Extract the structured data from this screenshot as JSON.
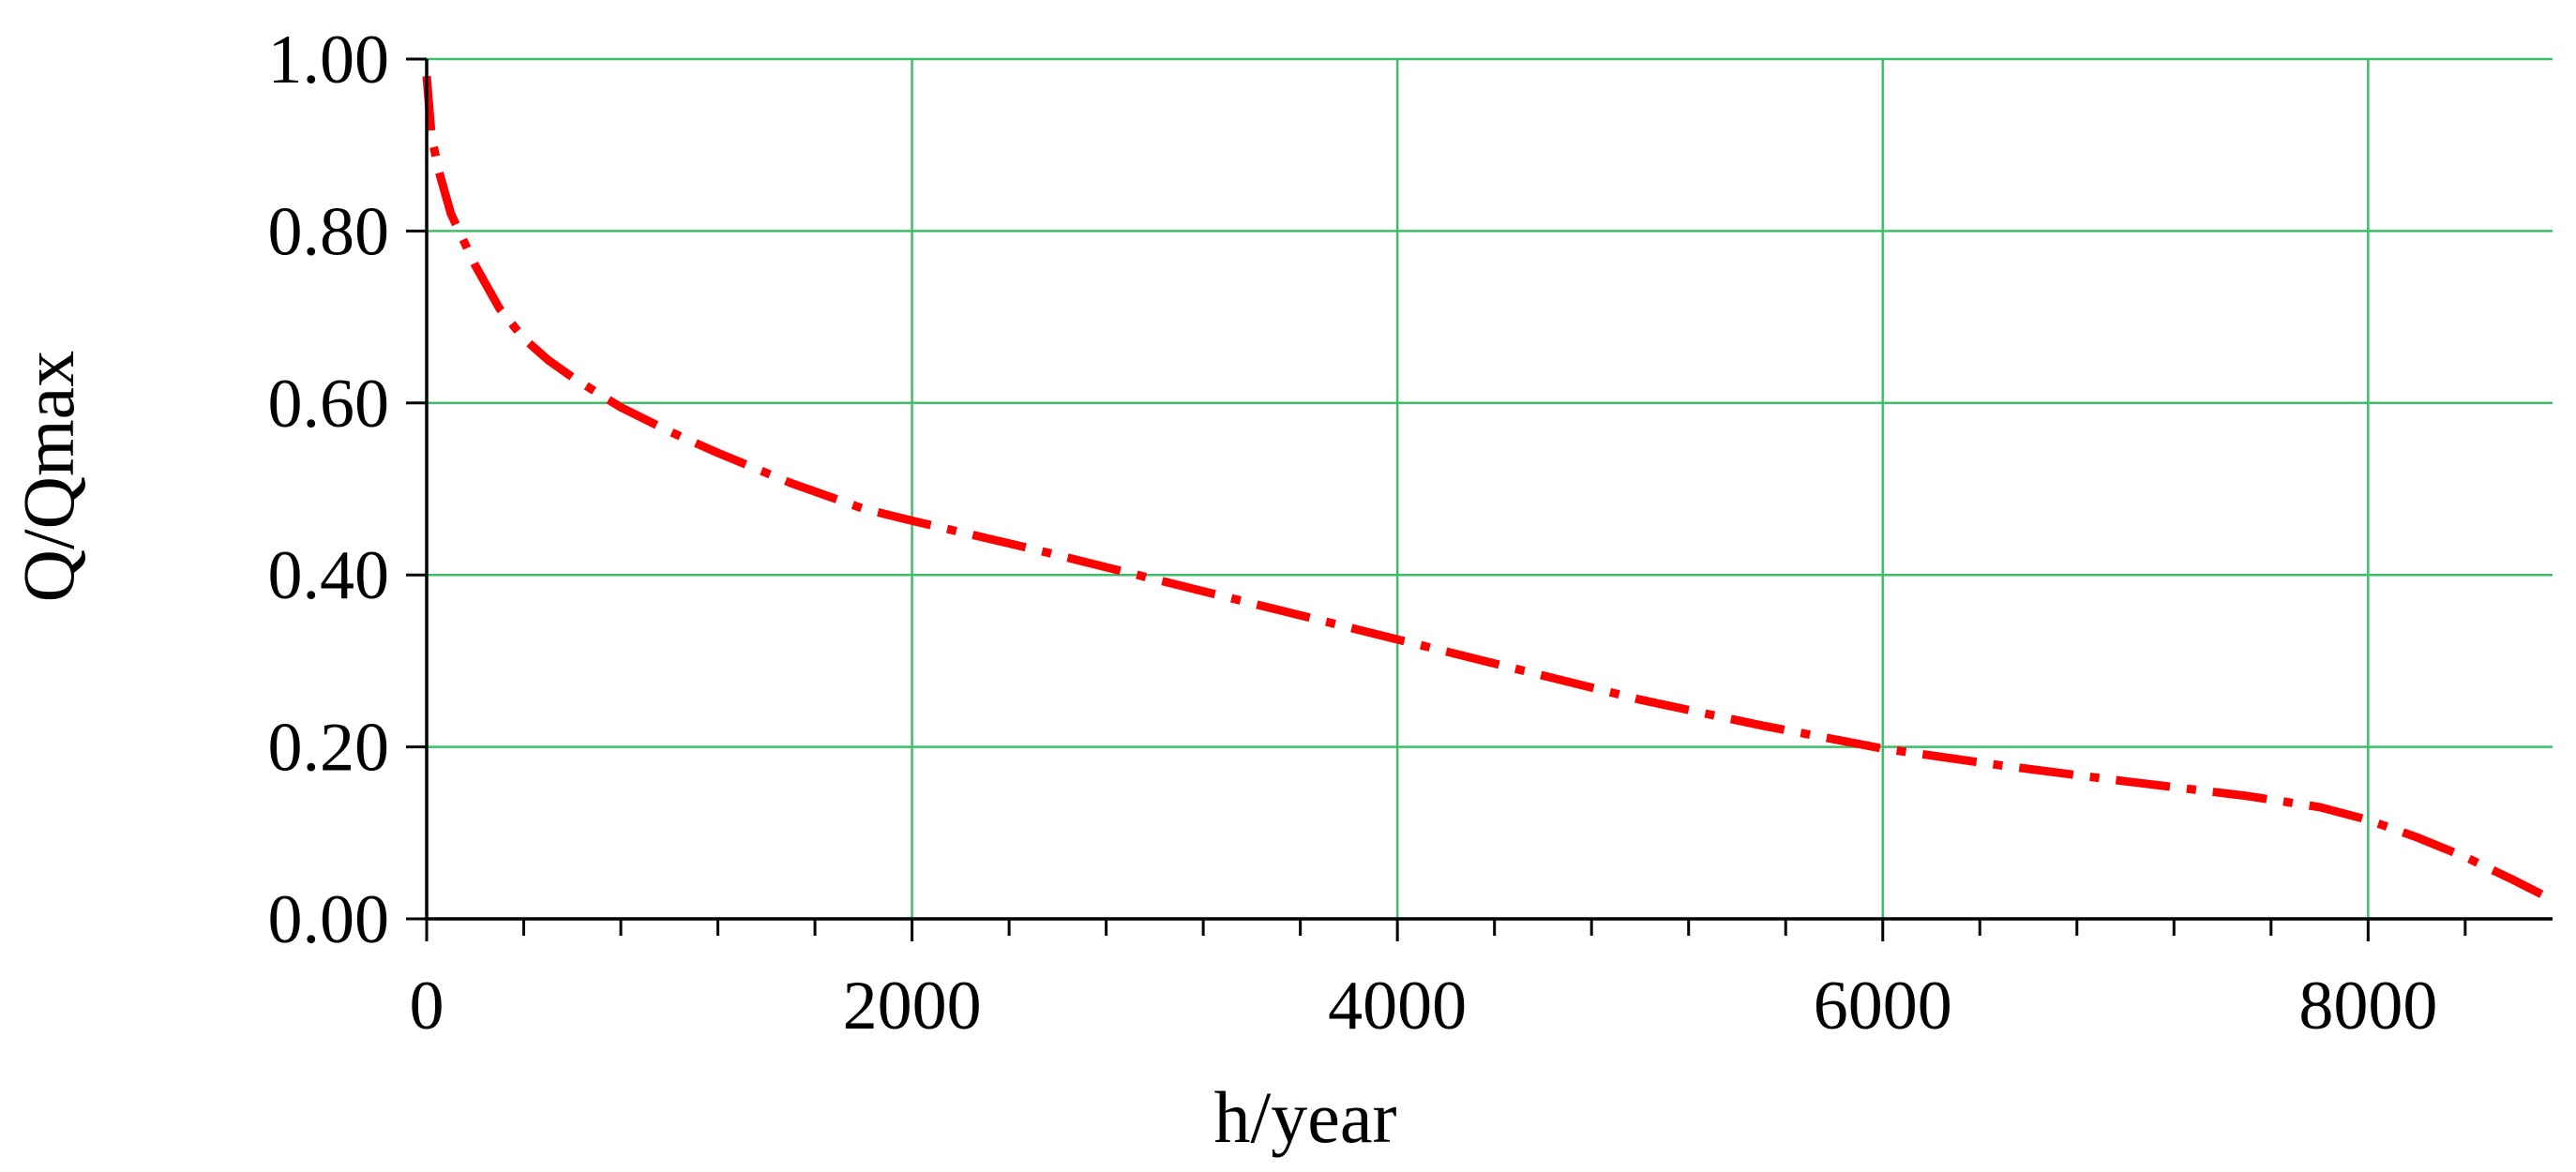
{
  "colors": {
    "grid": "#3cbf6a",
    "series": "#ff0000",
    "axis": "#000000",
    "background": "#ffffff"
  },
  "chart_data": {
    "type": "line",
    "title": "",
    "xlabel": "h/year",
    "ylabel": "Q/Qmax",
    "xlim": [
      0,
      8760
    ],
    "ylim": [
      0,
      1.0
    ],
    "x_ticks": [
      0,
      2000,
      4000,
      6000,
      8000
    ],
    "x_tick_labels": [
      "0",
      "2000",
      "4000",
      "6000",
      "8000"
    ],
    "x_minor_step": 400,
    "y_ticks": [
      0,
      0.2,
      0.4,
      0.6,
      0.8,
      1.0
    ],
    "y_tick_labels": [
      "0.00",
      "0.20",
      "0.40",
      "0.60",
      "0.80",
      "1.00"
    ],
    "grid": true,
    "legend": "none",
    "series": [
      {
        "line_style": "dash-dot",
        "color": "#ff0000",
        "x": [
          0,
          20,
          50,
          100,
          200,
          300,
          400,
          500,
          600,
          800,
          1000,
          1200,
          1500,
          1800,
          2000,
          2500,
          3000,
          3500,
          4000,
          4500,
          5000,
          5500,
          6000,
          6500,
          7000,
          7500,
          7800,
          8000,
          8200,
          8400,
          8600,
          8760
        ],
        "y": [
          0.98,
          0.91,
          0.87,
          0.82,
          0.76,
          0.71,
          0.675,
          0.65,
          0.63,
          0.595,
          0.567,
          0.542,
          0.507,
          0.477,
          0.463,
          0.43,
          0.395,
          0.36,
          0.325,
          0.29,
          0.255,
          0.225,
          0.198,
          0.178,
          0.16,
          0.143,
          0.13,
          0.115,
          0.095,
          0.072,
          0.045,
          0.022
        ]
      }
    ]
  }
}
